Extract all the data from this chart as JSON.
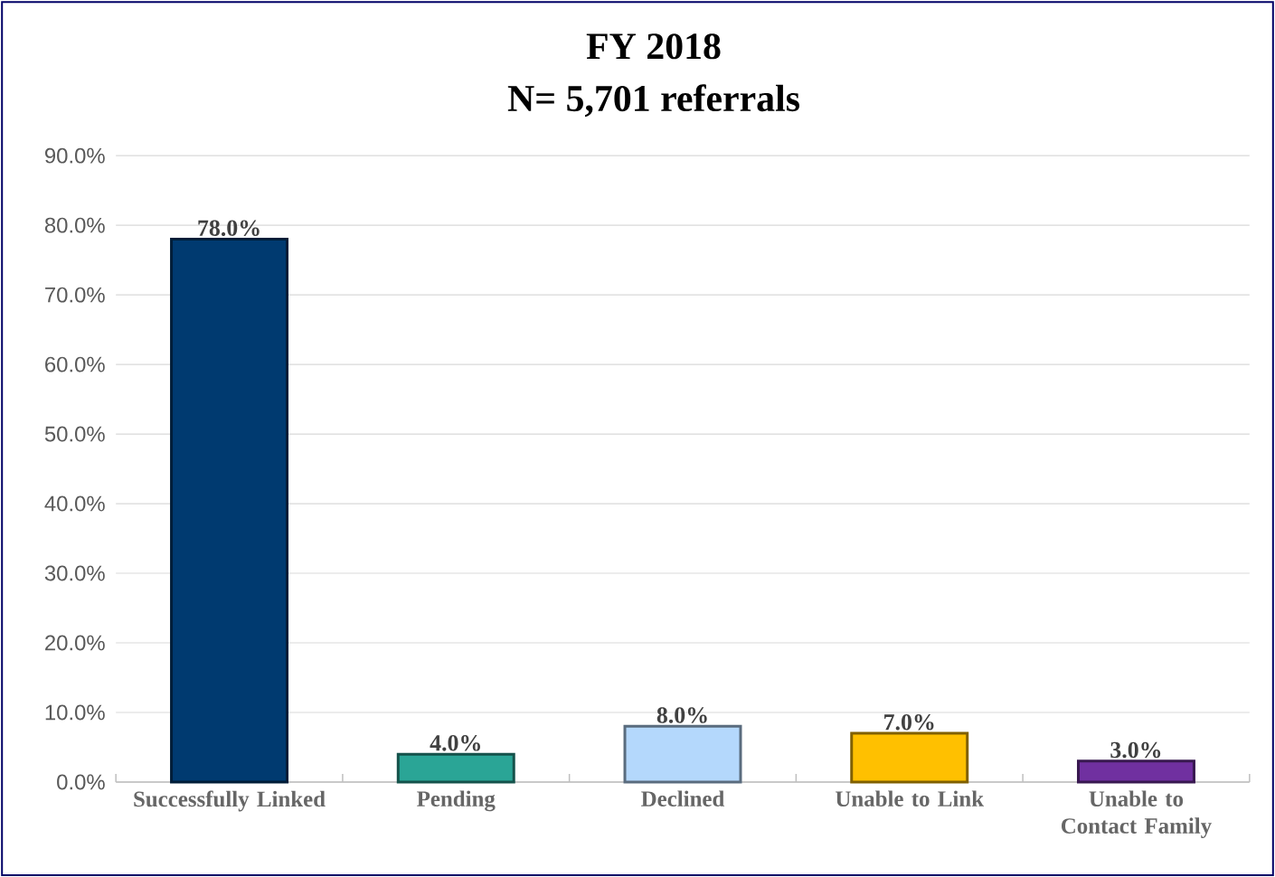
{
  "chart_data": {
    "type": "bar",
    "title": "FY 2018",
    "subtitle": "N= 5,701 referrals",
    "categories": [
      "Successfully Linked",
      "Pending",
      "Declined",
      "Unable to Link",
      "Unable to Contact Family"
    ],
    "values": [
      78.0,
      4.0,
      8.0,
      7.0,
      3.0
    ],
    "colors": [
      "#003a70",
      "#2aa596",
      "#b4d8fc",
      "#ffc000",
      "#7030a0"
    ],
    "value_labels": [
      "78.0%",
      "4.0%",
      "8.0%",
      "7.0%",
      "3.0%"
    ],
    "ylim": [
      0,
      90
    ],
    "yticks": [
      {
        "value": 0,
        "label": "0.0%"
      },
      {
        "value": 10,
        "label": "10.0%"
      },
      {
        "value": 20,
        "label": "20.0%"
      },
      {
        "value": 30,
        "label": "30.0%"
      },
      {
        "value": 40,
        "label": "40.0%"
      },
      {
        "value": 50,
        "label": "50.0%"
      },
      {
        "value": 60,
        "label": "60.0%"
      },
      {
        "value": 70,
        "label": "70.0%"
      },
      {
        "value": 80,
        "label": "80.0%"
      },
      {
        "value": 90,
        "label": "90.0%"
      }
    ],
    "grid": "y"
  }
}
